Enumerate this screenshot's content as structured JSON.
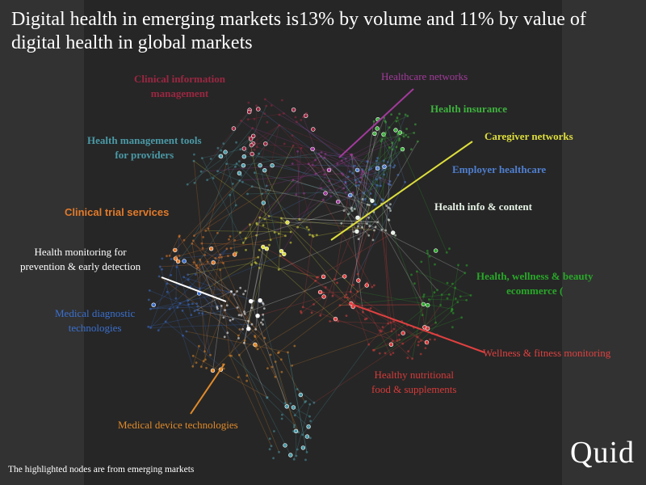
{
  "title": "Digital health in emerging markets is13% by volume and 11% by value of digital health in global markets",
  "footnote": "The highlighted nodes are from emerging markets",
  "logo": "Quid",
  "colors": {
    "background": "#323232",
    "panel": "#262626",
    "highlight_node": "#ffffff"
  },
  "clusters": [
    {
      "id": "clinical-information",
      "label": "Clinical information\nmanagement",
      "color": "#9b2741"
    },
    {
      "id": "healthcare-networks",
      "label": "Healthcare networks",
      "color": "#a23a9c"
    },
    {
      "id": "health-insurance",
      "label": "Health insurance",
      "color": "#3eb33e"
    },
    {
      "id": "caregiver-networks",
      "label": "Caregiver networks",
      "color": "#dede3c"
    },
    {
      "id": "health-management-tools",
      "label": "Health management tools\nfor providers",
      "color": "#4a9aa7"
    },
    {
      "id": "employer-healthcare",
      "label": "Employer healthcare",
      "color": "#4f7fd0"
    },
    {
      "id": "health-info-content",
      "label": "Health info & content",
      "color": "#e6f2e6"
    },
    {
      "id": "clinical-trial-services",
      "label": "Clinical trial services",
      "color": "#e27a2a"
    },
    {
      "id": "health-monitoring",
      "label": "Health monitoring for\nprevention & early detection",
      "color": "#ffffff"
    },
    {
      "id": "health-wellness-beauty",
      "label": "Health, wellness & beauty\necommerce (",
      "color": "#28a828"
    },
    {
      "id": "medical-diagnostic",
      "label": "Medical diagnostic\ntechnologies",
      "color": "#3a70cf"
    },
    {
      "id": "wellness-fitness",
      "label": "Wellness & fitness monitoring",
      "color": "#e04040"
    },
    {
      "id": "healthy-nutritional",
      "label": "Healthy nutritional\nfood & supplements",
      "color": "#d63a3a"
    },
    {
      "id": "medical-device",
      "label": "Medical device technologies",
      "color": "#e08a2a"
    }
  ]
}
